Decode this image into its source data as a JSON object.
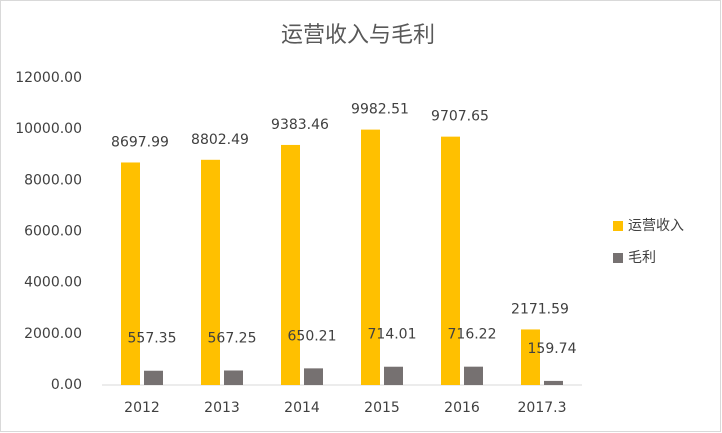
{
  "chart_data": {
    "type": "bar",
    "title": "运营收入与毛利",
    "categories": [
      "2012",
      "2013",
      "2014",
      "2015",
      "2016",
      "2017.3"
    ],
    "series": [
      {
        "name": "运营收入",
        "color": "#ffc000",
        "values": [
          8697.99,
          8802.49,
          9383.46,
          9982.51,
          9707.65,
          2171.59
        ]
      },
      {
        "name": "毛利",
        "color": "#767171",
        "values": [
          557.35,
          567.25,
          650.21,
          714.01,
          716.22,
          159.74
        ]
      }
    ],
    "ylim": [
      0,
      12000
    ],
    "yticks": [
      {
        "value": 0,
        "label": "0.00"
      },
      {
        "value": 2000,
        "label": "2000.00"
      },
      {
        "value": 4000,
        "label": "4000.00"
      },
      {
        "value": 6000,
        "label": "6000.00"
      },
      {
        "value": 8000,
        "label": "8000.00"
      },
      {
        "value": 10000,
        "label": "10000.00"
      },
      {
        "value": 12000,
        "label": "12000.00"
      }
    ],
    "grid": false,
    "legend": "right"
  }
}
